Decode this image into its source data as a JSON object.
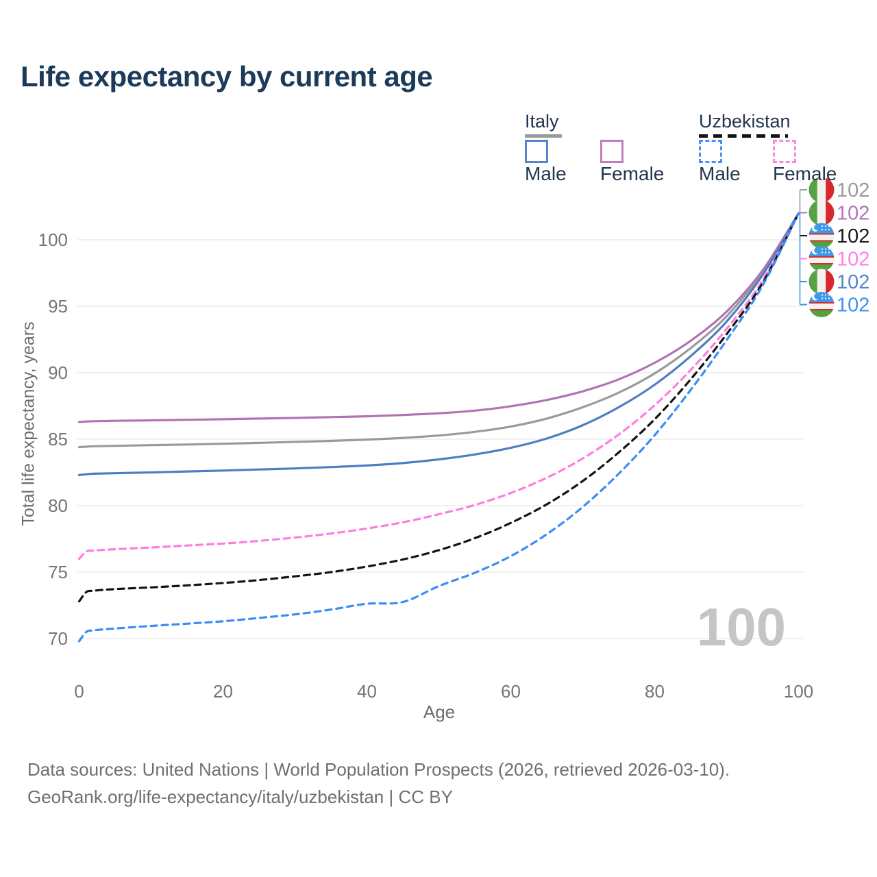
{
  "title": "Life expectancy by current age",
  "watermark": "100",
  "legend": {
    "groups": [
      {
        "label": "Italy",
        "underline_style": "solid",
        "underline_color": "#9a9a9a",
        "items": [
          {
            "label": "Male",
            "color": "#5b84c4",
            "dash": false
          },
          {
            "label": "Female",
            "color": "#c07ec0",
            "dash": false
          }
        ]
      },
      {
        "label": "Uzbekistan",
        "underline_style": "dashed",
        "underline_color": "#141414",
        "items": [
          {
            "label": "Male",
            "color": "#4a90f7",
            "dash": true
          },
          {
            "label": "Female",
            "color": "#ff85e0",
            "dash": true
          }
        ]
      }
    ]
  },
  "footer": {
    "line1": "Data sources: United Nations | World Population Prospects (2026, retrieved 2026-03-10).",
    "line2": "GeoRank.org/life-expectancy/italy/uzbekistan | CC BY"
  },
  "chart_data": {
    "type": "line",
    "title": "Life expectancy by current age",
    "xlabel": "Age",
    "ylabel": "Total life expectancy, years",
    "xlim": [
      0,
      100
    ],
    "ylim": [
      68.5,
      103
    ],
    "xticks": [
      0,
      20,
      40,
      60,
      80,
      100
    ],
    "yticks": [
      70,
      75,
      80,
      85,
      90,
      95,
      100
    ],
    "grid": "horizontal-only",
    "gridline_color": "#ebebeb",
    "tick_label_color": "#757575",
    "x": [
      0,
      1,
      2,
      5,
      10,
      15,
      20,
      25,
      30,
      35,
      40,
      45,
      50,
      55,
      60,
      65,
      70,
      75,
      80,
      85,
      90,
      95,
      100
    ],
    "series": [
      {
        "name": "Italy average",
        "country": "Italy",
        "sex": "both",
        "color": "#9a9a9a",
        "dash": false,
        "label_slot": 0,
        "values": [
          84.4,
          84.44,
          84.47,
          84.5,
          84.55,
          84.6,
          84.66,
          84.72,
          84.8,
          84.87,
          84.97,
          85.1,
          85.28,
          85.55,
          85.95,
          86.55,
          87.4,
          88.5,
          89.95,
          91.85,
          94.25,
          97.55,
          102
        ]
      },
      {
        "name": "Italy Female",
        "country": "Italy",
        "sex": "female",
        "color": "#b173b4",
        "dash": false,
        "label_slot": 1,
        "values": [
          86.3,
          86.33,
          86.35,
          86.38,
          86.42,
          86.46,
          86.5,
          86.55,
          86.6,
          86.66,
          86.72,
          86.82,
          86.95,
          87.15,
          87.48,
          87.95,
          88.6,
          89.5,
          90.75,
          92.4,
          94.6,
          97.7,
          102
        ]
      },
      {
        "name": "Italy Male",
        "country": "Italy",
        "sex": "male",
        "color": "#4d7ec2",
        "dash": false,
        "label_slot": 4,
        "values": [
          82.3,
          82.36,
          82.4,
          82.44,
          82.5,
          82.57,
          82.64,
          82.72,
          82.8,
          82.9,
          83.02,
          83.2,
          83.48,
          83.85,
          84.35,
          85.05,
          86.05,
          87.4,
          89.1,
          91.25,
          93.85,
          97.35,
          102
        ]
      },
      {
        "name": "Uzbekistan Female",
        "country": "Uzbekistan",
        "sex": "female",
        "color": "#ff7ce0",
        "dash": true,
        "label_slot": 3,
        "values": [
          76.0,
          76.55,
          76.62,
          76.72,
          76.85,
          77.0,
          77.15,
          77.35,
          77.6,
          77.9,
          78.28,
          78.75,
          79.35,
          80.05,
          80.95,
          82.1,
          83.55,
          85.35,
          87.55,
          90.2,
          93.3,
          96.95,
          102
        ]
      },
      {
        "name": "Uzbekistan average",
        "country": "Uzbekistan",
        "sex": "both",
        "color": "#141414",
        "dash": true,
        "label_slot": 2,
        "values": [
          72.8,
          73.5,
          73.6,
          73.72,
          73.85,
          74.0,
          74.18,
          74.4,
          74.68,
          75.0,
          75.42,
          75.95,
          76.65,
          77.55,
          78.7,
          80.1,
          81.85,
          84.0,
          86.5,
          89.5,
          92.9,
          96.75,
          102
        ]
      },
      {
        "name": "Uzbekistan Male",
        "country": "Uzbekistan",
        "sex": "male",
        "color": "#3b8df5",
        "dash": true,
        "label_slot": 5,
        "values": [
          69.8,
          70.5,
          70.62,
          70.76,
          70.95,
          71.12,
          71.3,
          71.55,
          71.82,
          72.18,
          72.62,
          72.75,
          73.95,
          74.95,
          76.2,
          77.85,
          79.9,
          82.4,
          85.3,
          88.7,
          92.45,
          96.55,
          102
        ]
      }
    ],
    "end_labels": [
      {
        "slot": 0,
        "flag": "italy",
        "text": "102",
        "color": "#9a9a9a"
      },
      {
        "slot": 1,
        "flag": "italy",
        "text": "102",
        "color": "#b173b8"
      },
      {
        "slot": 2,
        "flag": "uzbekistan",
        "text": "102",
        "color": "#1a1a1a"
      },
      {
        "slot": 3,
        "flag": "uzbekistan",
        "text": "102",
        "color": "#ff80e8"
      },
      {
        "slot": 4,
        "flag": "italy",
        "text": "102",
        "color": "#5585c8"
      },
      {
        "slot": 5,
        "flag": "uzbekistan",
        "text": "102",
        "color": "#4090f0"
      }
    ],
    "legend_position": "top-right",
    "flag_colors": {
      "italy_green": "#58a146",
      "italy_red": "#d7282f",
      "uzbekistan_blue": "#3f98e8",
      "uzbekistan_green": "#55a33e",
      "uzbekistan_red": "#d03030"
    }
  }
}
